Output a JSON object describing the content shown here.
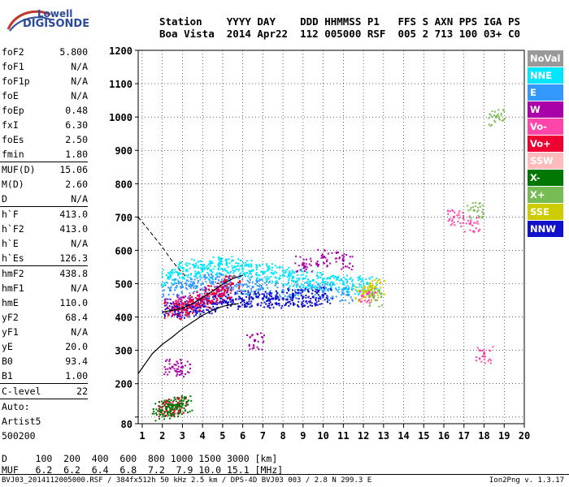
{
  "logo": {
    "line1": "Lowell",
    "line2": "DIGISONDE"
  },
  "header": {
    "line1": "Station    YYYY DAY    DDD HHMMSS P1   FFS S AXN PPS IGA PS",
    "line2": "Boa Vista  2014 Apr22  112 005000 RSF  005 2 713 100 03+ C0"
  },
  "params": [
    {
      "name": "foF2",
      "value": "5.800"
    },
    {
      "name": "foF1",
      "value": "N/A"
    },
    {
      "name": "foF1p",
      "value": "N/A"
    },
    {
      "name": "foE",
      "value": "N/A"
    },
    {
      "name": "foEp",
      "value": "0.48"
    },
    {
      "name": "fxI",
      "value": "6.30"
    },
    {
      "name": "foEs",
      "value": "2.50"
    },
    {
      "name": "fmin",
      "value": "1.80"
    },
    {
      "sep": true
    },
    {
      "name": "MUF(D)",
      "value": "15.06"
    },
    {
      "name": "M(D)",
      "value": "2.60"
    },
    {
      "name": "D",
      "value": "N/A"
    },
    {
      "sep": true
    },
    {
      "name": "h`F",
      "value": "413.0"
    },
    {
      "name": "h`F2",
      "value": "413.0"
    },
    {
      "name": "h`E",
      "value": "N/A"
    },
    {
      "name": "h`Es",
      "value": "126.3"
    },
    {
      "sep": true
    },
    {
      "name": "hmF2",
      "value": "438.8"
    },
    {
      "name": "hmF1",
      "value": "N/A"
    },
    {
      "name": "hmE",
      "value": "110.0"
    },
    {
      "name": "yF2",
      "value": "68.4"
    },
    {
      "name": "yF1",
      "value": "N/A"
    },
    {
      "name": "yE",
      "value": "20.0"
    },
    {
      "name": "B0",
      "value": "93.4"
    },
    {
      "name": "B1",
      "value": "1.00"
    },
    {
      "sep": true
    },
    {
      "name": "C-level",
      "value": "22"
    },
    {
      "sep": true
    },
    {
      "name": "Auto:",
      "value": ""
    },
    {
      "name": "Artist5",
      "value": ""
    },
    {
      "name": "500200",
      "value": ""
    }
  ],
  "legend": [
    {
      "label": "NoVal",
      "color": "#999999"
    },
    {
      "label": "NNE",
      "color": "#00e6ff"
    },
    {
      "label": "E",
      "color": "#3399ff"
    },
    {
      "label": "W",
      "color": "#aa00aa"
    },
    {
      "label": "Vo-",
      "color": "#ff44aa"
    },
    {
      "label": "Vo+",
      "color": "#ee0033"
    },
    {
      "label": "SSW",
      "color": "#ffbbbb"
    },
    {
      "label": "X-",
      "color": "#007700"
    },
    {
      "label": "X+",
      "color": "#77bb55"
    },
    {
      "label": "SSE",
      "color": "#cccc00"
    },
    {
      "label": "NNW",
      "color": "#1111cc"
    }
  ],
  "muf_table": {
    "line1": "D     100  200  400  600  800 1000 1500 3000 [km]",
    "line2": "MUF   6.2  6.2  6.4  6.8  7.2  7.9 10.0 15.1 [MHz]"
  },
  "footer": {
    "left": "BVJ03_2014112005000.RSF / 384fx512h 50 kHz 2.5 km / DPS-4D BVJ03 003 / 2.8 N 299.3 E",
    "right": "Ion2Png v. 1.3.17"
  },
  "chart_data": {
    "type": "scatter",
    "title": "",
    "xlabel": "",
    "ylabel": "",
    "xlim": [
      0.8,
      20
    ],
    "ylim": [
      80,
      1200
    ],
    "x_ticks": [
      1,
      2,
      3,
      4,
      5,
      6,
      7,
      8,
      9,
      10,
      11,
      12,
      13,
      14,
      15,
      16,
      17,
      18,
      19,
      20
    ],
    "y_ticks": [
      80,
      100,
      200,
      300,
      400,
      500,
      600,
      700,
      800,
      900,
      1000,
      1100,
      1200
    ],
    "y_tick_labels": [
      "80",
      "",
      "200",
      "300",
      "400",
      "500",
      "600",
      "700",
      "800",
      "900",
      "1000",
      "1100",
      "1200"
    ],
    "grid": true,
    "series": [
      {
        "name": "NNE",
        "color": "#00e6ff",
        "x": [
          2.3,
          2.8,
          3.2,
          3.6,
          4.0,
          4.4,
          4.8,
          5.2,
          5.6,
          6.0,
          6.5,
          7.0,
          7.5,
          8.0,
          8.5,
          9.0,
          9.5,
          10.0,
          10.5,
          11.0,
          11.5,
          12.2
        ],
        "y": [
          520,
          530,
          540,
          550,
          545,
          540,
          555,
          560,
          550,
          545,
          540,
          535,
          530,
          525,
          520,
          515,
          510,
          505,
          500,
          500,
          495,
          500
        ]
      },
      {
        "name": "E",
        "color": "#3399ff",
        "x": [
          2.4,
          3.0,
          3.5,
          4.0,
          4.5,
          5.0,
          5.5,
          6.0,
          6.5,
          7.0,
          8.0,
          9.0,
          10.0,
          11.0
        ],
        "y": [
          480,
          490,
          495,
          500,
          505,
          505,
          500,
          495,
          490,
          485,
          480,
          480,
          475,
          470
        ]
      },
      {
        "name": "W",
        "color": "#aa00aa",
        "x": [
          2.5,
          3.0,
          3.5,
          4.0,
          4.5,
          5.0,
          6.6,
          9.0,
          10.0,
          11.0,
          2.5,
          3.0
        ],
        "y": [
          430,
          440,
          450,
          460,
          470,
          470,
          330,
          560,
          580,
          570,
          250,
          250
        ]
      },
      {
        "name": "NNW",
        "color": "#1111cc",
        "x": [
          2.4,
          3.0,
          3.5,
          4.0,
          4.5,
          5.0,
          5.5,
          6.0,
          6.5,
          7.0,
          7.5,
          8.0,
          8.5,
          9.0,
          9.5,
          10.0
        ],
        "y": [
          420,
          425,
          430,
          435,
          440,
          445,
          450,
          450,
          455,
          455,
          455,
          455,
          460,
          460,
          460,
          465
        ]
      },
      {
        "name": "Vo+",
        "color": "#ee0033",
        "x": [
          2.5,
          3.0,
          3.5,
          4.0,
          4.5,
          5.0,
          5.5,
          2.2,
          2.5,
          2.8
        ],
        "y": [
          420,
          430,
          440,
          455,
          470,
          485,
          500,
          130,
          135,
          138
        ]
      },
      {
        "name": "X-",
        "color": "#007700",
        "x": [
          1.9,
          2.2,
          2.5,
          2.8,
          3.0
        ],
        "y": [
          118,
          125,
          130,
          135,
          140
        ]
      },
      {
        "name": "SSE",
        "color": "#cccc00",
        "x": [
          12.0,
          12.3,
          12.6
        ],
        "y": [
          470,
          480,
          490
        ]
      },
      {
        "name": "Vo-",
        "color": "#ff44aa",
        "x": [
          12.2,
          16.5,
          17.3,
          18.0
        ],
        "y": [
          470,
          700,
          680,
          290
        ]
      },
      {
        "name": "X+",
        "color": "#77bb55",
        "x": [
          12.5,
          17.5,
          18.6
        ],
        "y": [
          460,
          720,
          1000
        ]
      }
    ],
    "profile_curve": {
      "x": [
        0.8,
        1.5,
        2.0,
        2.5,
        3.0,
        3.5,
        4.0,
        4.5,
        5.0,
        5.5,
        5.8
      ],
      "y": [
        230,
        290,
        318,
        340,
        365,
        385,
        405,
        420,
        432,
        438,
        440
      ]
    },
    "virtual_height_curve": {
      "x": [
        2.0,
        2.5,
        3.0,
        3.5,
        4.0,
        4.5,
        5.0,
        5.5,
        6.0
      ],
      "y": [
        415,
        420,
        427,
        440,
        458,
        478,
        498,
        515,
        525
      ]
    },
    "dashed_curve": {
      "x": [
        0.8,
        1.2,
        1.6,
        2.0,
        2.4,
        2.8,
        3.2
      ],
      "y": [
        700,
        670,
        640,
        610,
        575,
        545,
        520
      ]
    }
  }
}
